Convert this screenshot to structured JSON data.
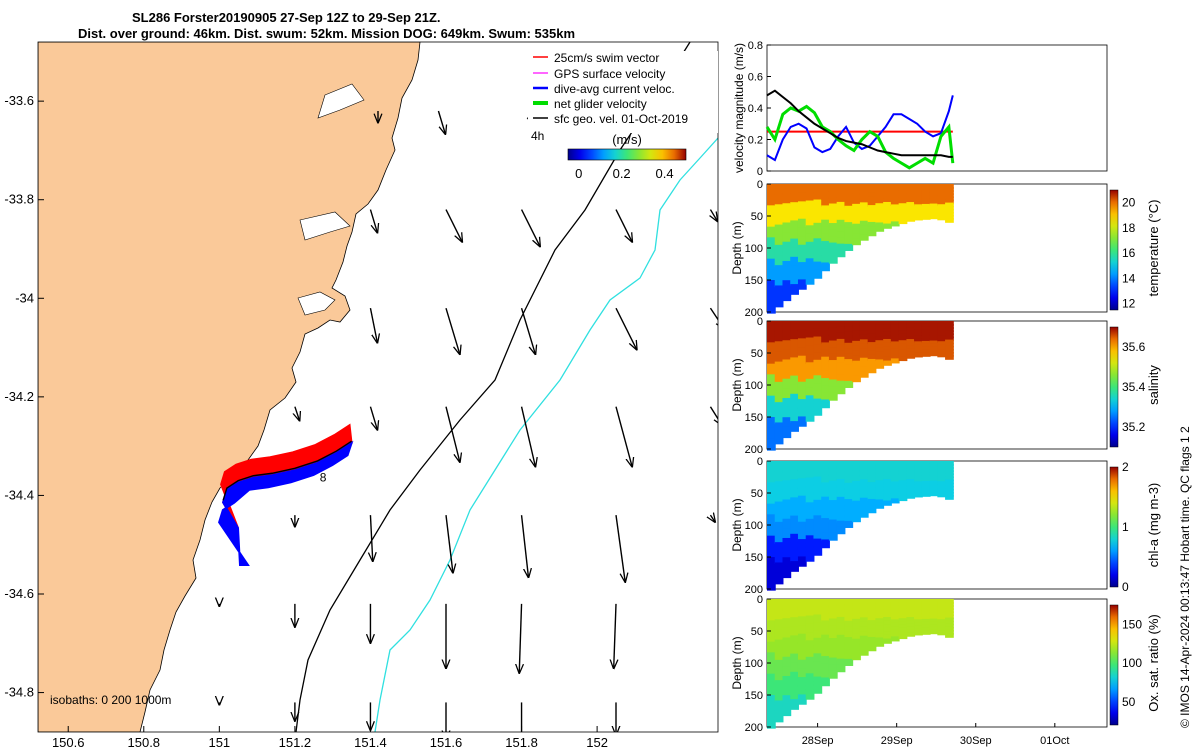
{
  "title": {
    "line1": "SL286 Forster20190905 27-Sep 12Z to 29-Sep 21Z.",
    "line2": "Dist. over ground: 46km. Dist. swum: 52km. Mission DOG: 649km. Swum: 535km"
  },
  "footer": "© IMOS 14-Apr-2024 00:13:47 Hobart time. QC flags 1  2",
  "colors": {
    "land": "#FAC999",
    "sea": "#FFFFFF",
    "swim_vector": "#FF0000",
    "gps_velocity": "#FF00FF",
    "current": "#0000FF",
    "net_velocity": "#00DD00",
    "geo_velocity": "#000000",
    "isobath_200": "#000000",
    "isobath_1000": "#30E0E0"
  },
  "chart_data": [
    {
      "type": "scatter",
      "name": "map",
      "xlim": [
        150.52,
        152.32
      ],
      "ylim": [
        -34.88,
        -33.48
      ],
      "xticks": [
        "150.6",
        "150.8",
        "151",
        "151.2",
        "151.4",
        "151.6",
        "151.8",
        "152"
      ],
      "yticks": [
        "-33.6",
        "-33.8",
        "-34",
        "-34.2",
        "-34.4",
        "-34.6",
        "-34.8"
      ],
      "legend": {
        "placement": "top-right",
        "entries": [
          "25cm/s swim vector",
          "GPS surface velocity",
          "dive-avg current veloc.",
          "net glider velocity",
          "sfc geo. vel. 01-Oct-2019"
        ]
      },
      "time_label": "4h",
      "colorbar": {
        "label": "(m/s)",
        "ticks": [
          "0",
          "0.2",
          "0.4"
        ],
        "range": [
          -0.05,
          0.5
        ]
      },
      "isobath_label": "isobaths: 0   200  1000m",
      "point_label": "8",
      "glider_track": {
        "lon": [
          151.01,
          151.02,
          151.05,
          151.09,
          151.14,
          151.2,
          151.26,
          151.31,
          151.35
        ],
        "lat": [
          -34.41,
          -34.385,
          -34.37,
          -34.36,
          -34.355,
          -34.345,
          -34.33,
          -34.31,
          -34.29
        ]
      },
      "geo_velocity": [
        {
          "lon": 151.42,
          "lat": -33.62,
          "u": 0.0,
          "v": -0.05
        },
        {
          "lon": 151.58,
          "lat": -33.62,
          "u": 0.03,
          "v": -0.1
        },
        {
          "lon": 151.82,
          "lat": -33.62,
          "u": 0.02,
          "v": -0.06
        },
        {
          "lon": 152.05,
          "lat": -33.62,
          "u": 0.02,
          "v": -0.07
        },
        {
          "lon": 152.3,
          "lat": -33.62,
          "u": 0.0,
          "v": -0.02
        },
        {
          "lon": 151.4,
          "lat": -33.82,
          "u": 0.03,
          "v": -0.1
        },
        {
          "lon": 151.6,
          "lat": -33.82,
          "u": 0.07,
          "v": -0.14
        },
        {
          "lon": 151.8,
          "lat": -33.82,
          "u": 0.08,
          "v": -0.16
        },
        {
          "lon": 152.05,
          "lat": -33.82,
          "u": 0.07,
          "v": -0.14
        },
        {
          "lon": 152.3,
          "lat": -33.82,
          "u": 0.03,
          "v": -0.05
        },
        {
          "lon": 151.4,
          "lat": -34.02,
          "u": 0.03,
          "v": -0.15
        },
        {
          "lon": 151.6,
          "lat": -34.02,
          "u": 0.06,
          "v": -0.2
        },
        {
          "lon": 151.8,
          "lat": -34.02,
          "u": 0.06,
          "v": -0.2
        },
        {
          "lon": 152.05,
          "lat": -34.02,
          "u": 0.09,
          "v": -0.18
        },
        {
          "lon": 152.3,
          "lat": -34.02,
          "u": 0.06,
          "v": -0.09
        },
        {
          "lon": 151.2,
          "lat": -34.22,
          "u": 0.02,
          "v": -0.06
        },
        {
          "lon": 151.4,
          "lat": -34.22,
          "u": 0.03,
          "v": -0.1
        },
        {
          "lon": 151.6,
          "lat": -34.22,
          "u": 0.06,
          "v": -0.24
        },
        {
          "lon": 151.8,
          "lat": -34.22,
          "u": 0.06,
          "v": -0.26
        },
        {
          "lon": 152.05,
          "lat": -34.22,
          "u": 0.07,
          "v": -0.26
        },
        {
          "lon": 152.3,
          "lat": -34.22,
          "u": 0.05,
          "v": -0.08
        },
        {
          "lon": 151.2,
          "lat": -34.44,
          "u": 0.0,
          "v": -0.05
        },
        {
          "lon": 151.4,
          "lat": -34.44,
          "u": 0.01,
          "v": -0.2
        },
        {
          "lon": 151.6,
          "lat": -34.44,
          "u": 0.03,
          "v": -0.25
        },
        {
          "lon": 151.8,
          "lat": -34.44,
          "u": 0.03,
          "v": -0.27
        },
        {
          "lon": 152.05,
          "lat": -34.44,
          "u": 0.04,
          "v": -0.29
        },
        {
          "lon": 152.3,
          "lat": -34.44,
          "u": 0.02,
          "v": -0.03
        },
        {
          "lon": 151.0,
          "lat": -34.62,
          "u": 0.0,
          "v": -0.01
        },
        {
          "lon": 151.2,
          "lat": -34.62,
          "u": 0.0,
          "v": -0.1
        },
        {
          "lon": 151.4,
          "lat": -34.62,
          "u": 0.0,
          "v": -0.17
        },
        {
          "lon": 151.6,
          "lat": -34.62,
          "u": 0.0,
          "v": -0.28
        },
        {
          "lon": 151.8,
          "lat": -34.62,
          "u": -0.01,
          "v": -0.3
        },
        {
          "lon": 152.05,
          "lat": -34.62,
          "u": -0.01,
          "v": -0.28
        },
        {
          "lon": 151.0,
          "lat": -34.82,
          "u": 0.0,
          "v": -0.01
        },
        {
          "lon": 151.2,
          "lat": -34.82,
          "u": 0.0,
          "v": -0.08
        },
        {
          "lon": 151.4,
          "lat": -34.82,
          "u": 0.0,
          "v": -0.12
        },
        {
          "lon": 151.6,
          "lat": -34.82,
          "u": 0.0,
          "v": -0.16
        },
        {
          "lon": 151.8,
          "lat": -34.82,
          "u": 0.0,
          "v": -0.18
        },
        {
          "lon": 152.05,
          "lat": -34.82,
          "u": 0.0,
          "v": -0.14
        }
      ]
    },
    {
      "type": "line",
      "name": "velocity",
      "ylabel": "velocity magnitude (m/s)",
      "ylim": [
        0,
        0.8
      ],
      "yticks": [
        "0",
        "0.2",
        "0.4",
        "0.6",
        "0.8"
      ],
      "x": [
        0,
        0.1,
        0.2,
        0.3,
        0.4,
        0.5,
        0.6,
        0.7,
        0.8,
        0.9,
        1.0,
        1.1,
        1.2,
        1.3,
        1.4,
        1.5,
        1.6,
        1.7,
        1.8,
        1.9,
        2.0,
        2.1,
        2.2,
        2.3,
        2.35
      ],
      "series": [
        {
          "color": "#FF0000",
          "values": [
            0.25,
            0.25,
            0.25,
            0.25,
            0.25,
            0.25,
            0.25,
            0.25,
            0.25,
            0.25,
            0.25,
            0.25,
            0.25,
            0.25,
            0.25,
            0.25,
            0.25,
            0.25,
            0.25,
            0.25,
            0.25,
            0.25,
            0.25,
            0.25,
            0.25
          ]
        },
        {
          "color": "#0000FF",
          "values": [
            0.1,
            0.07,
            0.2,
            0.28,
            0.3,
            0.27,
            0.15,
            0.12,
            0.14,
            0.22,
            0.28,
            0.18,
            0.14,
            0.16,
            0.22,
            0.28,
            0.36,
            0.36,
            0.33,
            0.3,
            0.25,
            0.22,
            0.24,
            0.38,
            0.48
          ]
        },
        {
          "color": "#00DD00",
          "values": [
            0.28,
            0.2,
            0.36,
            0.4,
            0.38,
            0.41,
            0.37,
            0.28,
            0.25,
            0.2,
            0.16,
            0.13,
            0.2,
            0.25,
            0.22,
            0.12,
            0.08,
            0.05,
            0.02,
            0.05,
            0.08,
            0.05,
            0.22,
            0.28,
            0.05
          ]
        },
        {
          "color": "#000000",
          "values": [
            0.48,
            0.51,
            0.47,
            0.43,
            0.38,
            0.34,
            0.3,
            0.27,
            0.24,
            0.21,
            0.19,
            0.18,
            0.17,
            0.15,
            0.13,
            0.12,
            0.11,
            0.1,
            0.1,
            0.1,
            0.1,
            0.1,
            0.1,
            0.09,
            0.09
          ]
        }
      ]
    },
    {
      "type": "heatmap",
      "name": "temperature",
      "ylabel": "Depth (m)",
      "ylim": [
        200,
        0
      ],
      "yticks": [
        "0",
        "50",
        "100",
        "150",
        "200"
      ],
      "colorbar": {
        "label": "temperature (°C)",
        "ticks": [
          "12",
          "14",
          "16",
          "18",
          "20"
        ],
        "range": [
          11.5,
          21
        ]
      }
    },
    {
      "type": "heatmap",
      "name": "salinity",
      "ylabel": "Depth (m)",
      "ylim": [
        200,
        0
      ],
      "yticks": [
        "0",
        "50",
        "100",
        "150",
        "200"
      ],
      "colorbar": {
        "label": "salinity",
        "ticks": [
          "35.2",
          "35.4",
          "35.6"
        ],
        "range": [
          35.1,
          35.7
        ]
      }
    },
    {
      "type": "heatmap",
      "name": "chla",
      "ylabel": "Depth (m)",
      "ylim": [
        200,
        0
      ],
      "yticks": [
        "0",
        "50",
        "100",
        "150",
        "200"
      ],
      "colorbar": {
        "label": "chl-a (mg m-3)",
        "ticks": [
          "0",
          "1",
          "2"
        ],
        "range": [
          0,
          2
        ]
      }
    },
    {
      "type": "heatmap",
      "name": "oxygen",
      "ylabel": "Depth (m)",
      "ylim": [
        200,
        0
      ],
      "yticks": [
        "0",
        "50",
        "100",
        "150",
        "200"
      ],
      "xticks": [
        "28Sep",
        "29Sep",
        "30Sep",
        "01Oct"
      ],
      "colorbar": {
        "label": "Ox. sat. ratio (%)",
        "ticks": [
          "50",
          "100",
          "150"
        ],
        "range": [
          20,
          175
        ]
      }
    }
  ]
}
